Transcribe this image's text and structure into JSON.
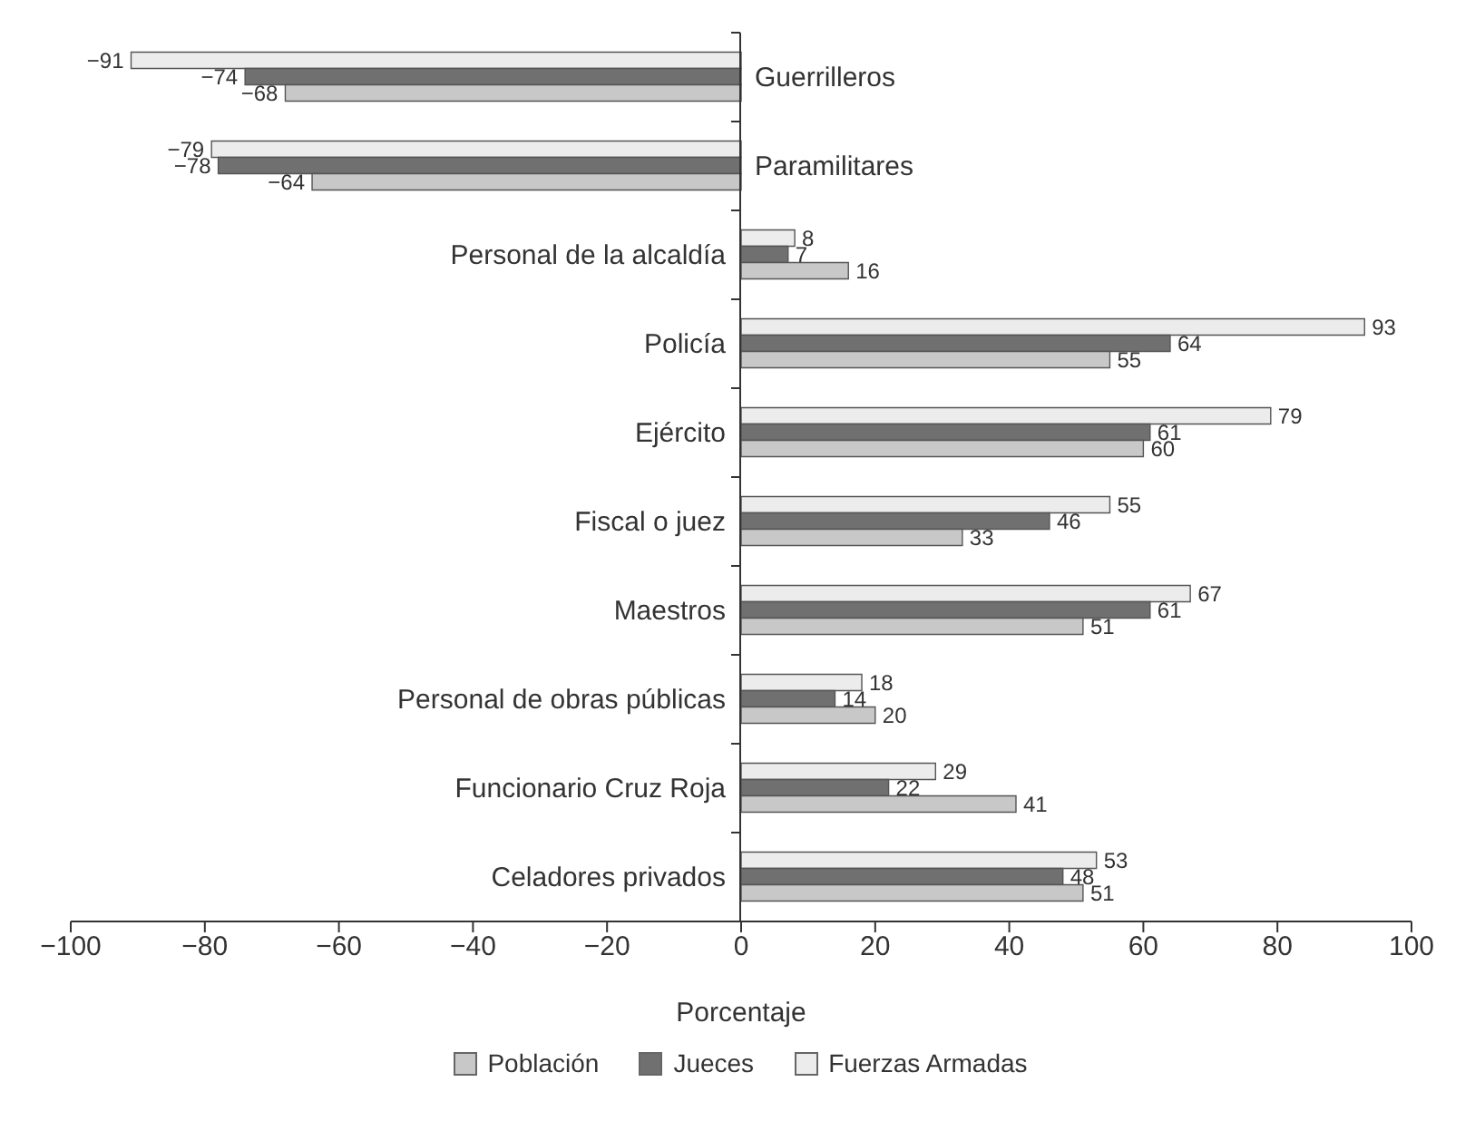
{
  "chart_data": {
    "type": "bar",
    "orientation": "horizontal",
    "xlabel": "Porcentaje",
    "categories": [
      "Guerrilleros",
      "Paramilitares",
      "Personal de la alcaldía",
      "Policía",
      "Ejército",
      "Fiscal o juez",
      "Maestros",
      "Personal de obras públicas",
      "Funcionario Cruz Roja",
      "Celadores privados"
    ],
    "series": [
      {
        "name": "Población",
        "color": "#c8c8c8",
        "values": [
          -68,
          -64,
          16,
          55,
          60,
          33,
          51,
          20,
          41,
          51
        ]
      },
      {
        "name": "Jueces",
        "color": "#707070",
        "values": [
          -74,
          -78,
          7,
          64,
          61,
          46,
          61,
          14,
          22,
          48
        ]
      },
      {
        "name": "Fuerzas Armadas",
        "color": "#ececec",
        "values": [
          -91,
          -79,
          8,
          93,
          79,
          55,
          67,
          18,
          29,
          53
        ]
      }
    ],
    "xlim": [
      -100,
      100
    ],
    "xticks": [
      {
        "value": -100,
        "label": "−100"
      },
      {
        "value": -80,
        "label": "−80"
      },
      {
        "value": -60,
        "label": "−60"
      },
      {
        "value": -40,
        "label": "−40"
      },
      {
        "value": -20,
        "label": "−20"
      },
      0,
      20,
      40,
      60,
      80,
      100
    ],
    "data_labels": true,
    "grid": false,
    "legend": "bottom"
  }
}
